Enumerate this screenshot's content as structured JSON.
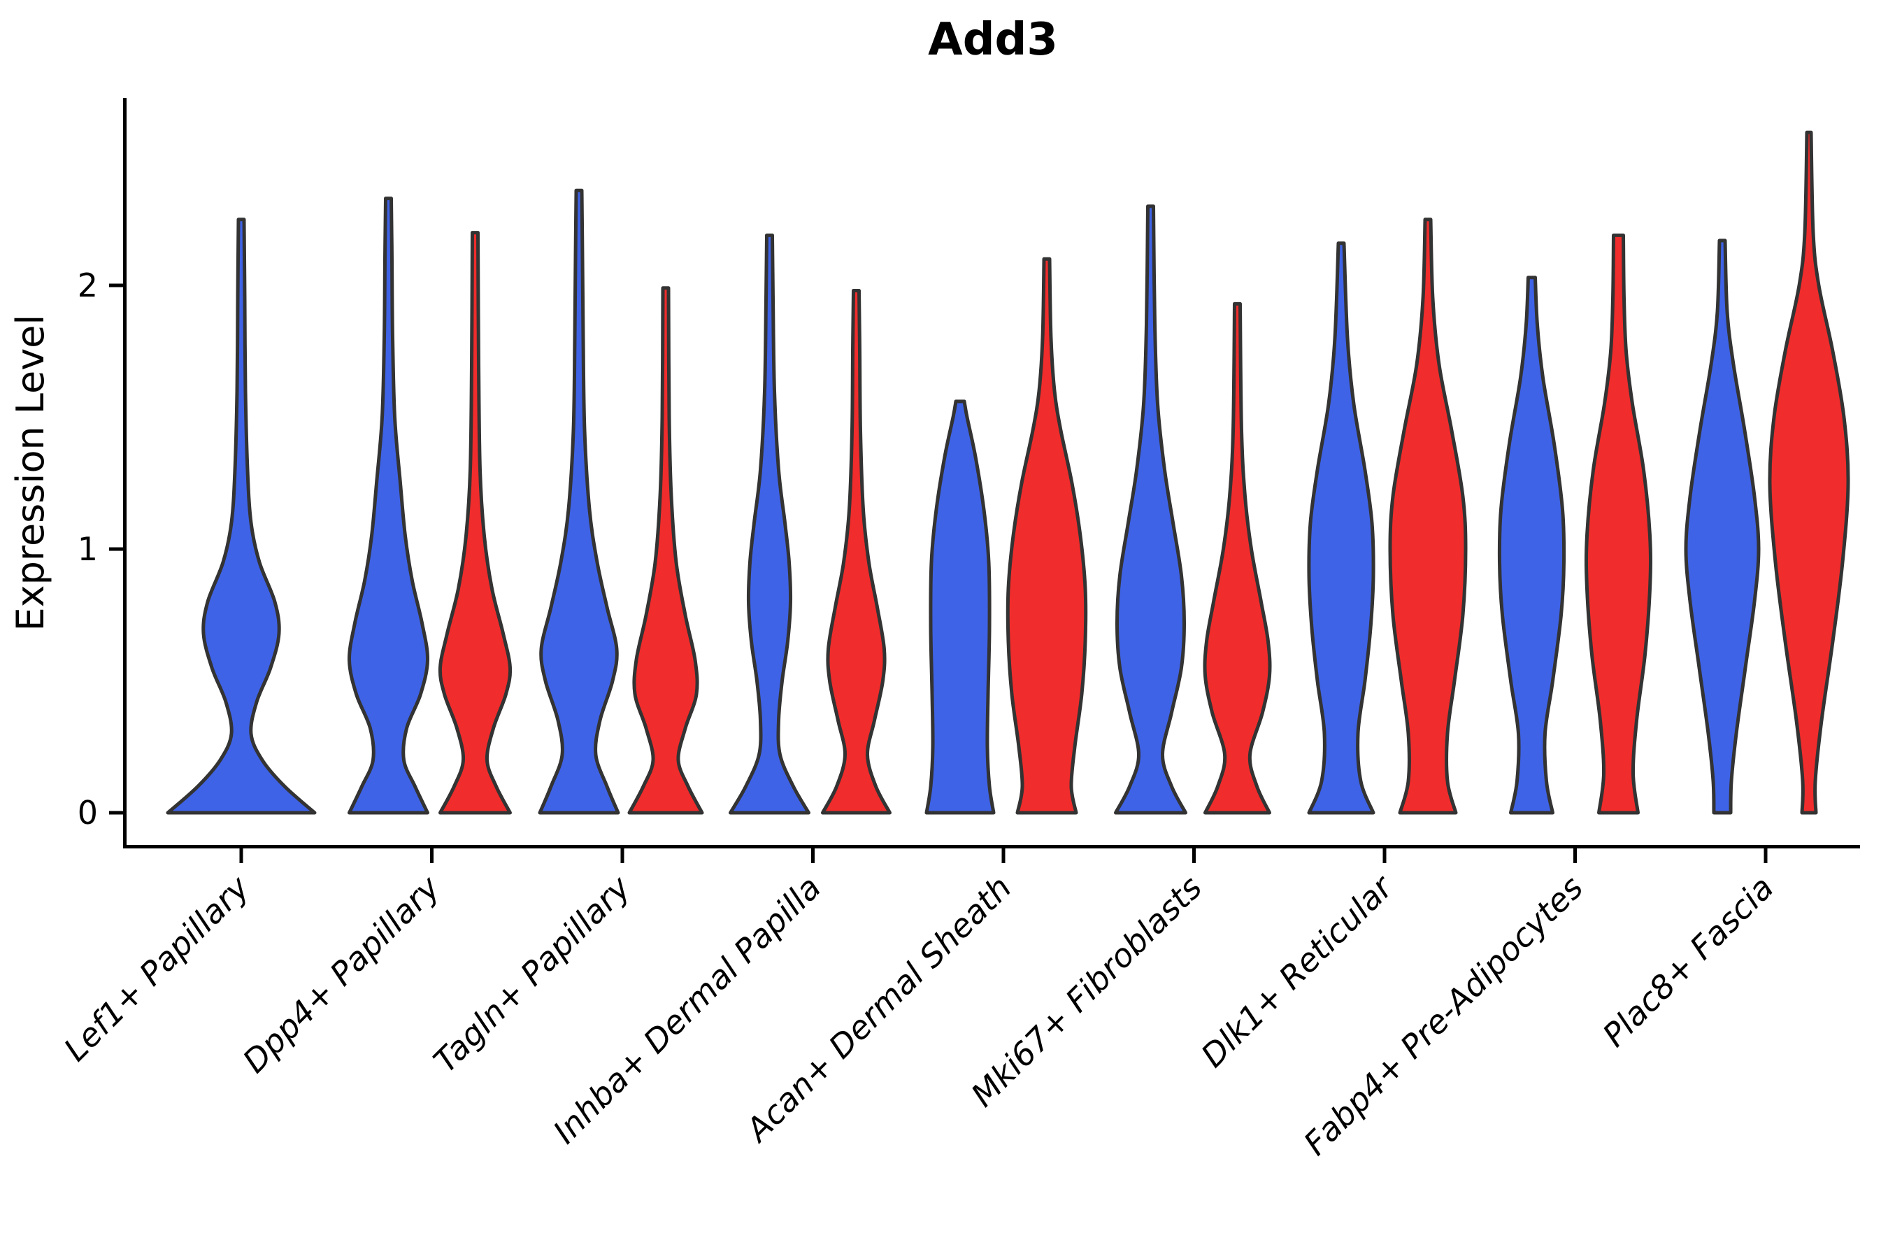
{
  "chart_data": {
    "type": "violin",
    "title": "Add3",
    "ylabel": "Expression Level",
    "yticks": [
      0,
      1,
      2
    ],
    "ylim": [
      0,
      2.7
    ],
    "grid": false,
    "legend": "none",
    "categories": [
      "Lef1+ Papillary",
      "Dpp4+ Papillary",
      "Tagln+ Papillary",
      "Inhba+ Dermal Papilla",
      "Acan+ Dermal Sheath",
      "Mki67+ Fibroblasts",
      "Dlk1+ Reticular",
      "Fabp4+ Pre-Adipocytes",
      "Plac8+ Fascia"
    ],
    "split_colors": {
      "blue": "#3F63E6",
      "red": "#F02C2C"
    },
    "outline_color": "#333333",
    "violins": [
      {
        "category_index": 0,
        "split": "blue",
        "max_expression": 2.25,
        "max_halfwidth": 105,
        "profile": [
          [
            0,
            105
          ],
          [
            0.1,
            62
          ],
          [
            0.2,
            30
          ],
          [
            0.3,
            14
          ],
          [
            0.42,
            22
          ],
          [
            0.55,
            42
          ],
          [
            0.68,
            54
          ],
          [
            0.8,
            48
          ],
          [
            0.95,
            26
          ],
          [
            1.1,
            14
          ],
          [
            1.3,
            9
          ],
          [
            1.6,
            6
          ],
          [
            1.95,
            5
          ],
          [
            2.25,
            4
          ]
        ]
      },
      {
        "category_index": 1,
        "split": "blue",
        "max_expression": 2.33,
        "max_halfwidth": 56,
        "profile": [
          [
            0,
            56
          ],
          [
            0.1,
            38
          ],
          [
            0.2,
            22
          ],
          [
            0.32,
            26
          ],
          [
            0.45,
            46
          ],
          [
            0.58,
            56
          ],
          [
            0.72,
            48
          ],
          [
            0.88,
            34
          ],
          [
            1.05,
            24
          ],
          [
            1.25,
            17
          ],
          [
            1.5,
            9
          ],
          [
            1.8,
            6
          ],
          [
            2.1,
            5
          ],
          [
            2.33,
            4
          ]
        ]
      },
      {
        "category_index": 1,
        "split": "red",
        "max_expression": 2.2,
        "max_halfwidth": 50,
        "profile": [
          [
            0,
            50
          ],
          [
            0.1,
            30
          ],
          [
            0.2,
            17
          ],
          [
            0.32,
            26
          ],
          [
            0.45,
            44
          ],
          [
            0.55,
            50
          ],
          [
            0.68,
            40
          ],
          [
            0.85,
            24
          ],
          [
            1.05,
            13
          ],
          [
            1.3,
            7
          ],
          [
            1.7,
            5
          ],
          [
            2.2,
            4
          ]
        ]
      },
      {
        "category_index": 2,
        "split": "blue",
        "max_expression": 2.36,
        "max_halfwidth": 56,
        "profile": [
          [
            0,
            56
          ],
          [
            0.1,
            40
          ],
          [
            0.22,
            24
          ],
          [
            0.35,
            30
          ],
          [
            0.5,
            48
          ],
          [
            0.62,
            54
          ],
          [
            0.78,
            40
          ],
          [
            0.95,
            26
          ],
          [
            1.15,
            15
          ],
          [
            1.45,
            8
          ],
          [
            1.8,
            6
          ],
          [
            2.1,
            5
          ],
          [
            2.36,
            4
          ]
        ]
      },
      {
        "category_index": 2,
        "split": "red",
        "max_expression": 1.99,
        "max_halfwidth": 52,
        "profile": [
          [
            0,
            52
          ],
          [
            0.1,
            32
          ],
          [
            0.2,
            18
          ],
          [
            0.32,
            28
          ],
          [
            0.45,
            44
          ],
          [
            0.58,
            42
          ],
          [
            0.75,
            28
          ],
          [
            0.95,
            15
          ],
          [
            1.2,
            8
          ],
          [
            1.5,
            5
          ],
          [
            1.99,
            4
          ]
        ]
      },
      {
        "category_index": 3,
        "split": "blue",
        "max_expression": 2.19,
        "max_halfwidth": 56,
        "profile": [
          [
            0,
            56
          ],
          [
            0.1,
            34
          ],
          [
            0.22,
            15
          ],
          [
            0.35,
            13
          ],
          [
            0.5,
            18
          ],
          [
            0.65,
            26
          ],
          [
            0.8,
            30
          ],
          [
            0.95,
            28
          ],
          [
            1.1,
            22
          ],
          [
            1.3,
            13
          ],
          [
            1.6,
            7
          ],
          [
            1.95,
            5
          ],
          [
            2.19,
            4
          ]
        ]
      },
      {
        "category_index": 3,
        "split": "red",
        "max_expression": 1.98,
        "max_halfwidth": 48,
        "profile": [
          [
            0,
            48
          ],
          [
            0.1,
            28
          ],
          [
            0.22,
            16
          ],
          [
            0.35,
            26
          ],
          [
            0.5,
            38
          ],
          [
            0.62,
            40
          ],
          [
            0.78,
            30
          ],
          [
            0.95,
            18
          ],
          [
            1.15,
            10
          ],
          [
            1.45,
            6
          ],
          [
            1.75,
            5
          ],
          [
            1.98,
            4
          ]
        ]
      },
      {
        "category_index": 4,
        "split": "blue",
        "max_expression": 1.56,
        "max_halfwidth": 48,
        "profile": [
          [
            0,
            48
          ],
          [
            0.1,
            42
          ],
          [
            0.25,
            39
          ],
          [
            0.45,
            40
          ],
          [
            0.7,
            42
          ],
          [
            0.95,
            41
          ],
          [
            1.15,
            34
          ],
          [
            1.35,
            22
          ],
          [
            1.5,
            10
          ],
          [
            1.56,
            6
          ]
        ]
      },
      {
        "category_index": 4,
        "split": "red",
        "max_expression": 2.1,
        "max_halfwidth": 55,
        "profile": [
          [
            0,
            42
          ],
          [
            0.1,
            35
          ],
          [
            0.25,
            40
          ],
          [
            0.45,
            50
          ],
          [
            0.65,
            55
          ],
          [
            0.85,
            55
          ],
          [
            1.05,
            48
          ],
          [
            1.25,
            36
          ],
          [
            1.45,
            20
          ],
          [
            1.6,
            11
          ],
          [
            1.8,
            6
          ],
          [
            2.1,
            4
          ]
        ]
      },
      {
        "category_index": 5,
        "split": "blue",
        "max_expression": 2.3,
        "max_halfwidth": 50,
        "profile": [
          [
            0,
            50
          ],
          [
            0.1,
            30
          ],
          [
            0.22,
            17
          ],
          [
            0.38,
            30
          ],
          [
            0.55,
            44
          ],
          [
            0.72,
            48
          ],
          [
            0.9,
            44
          ],
          [
            1.1,
            32
          ],
          [
            1.3,
            20
          ],
          [
            1.55,
            10
          ],
          [
            1.85,
            6
          ],
          [
            2.3,
            4
          ]
        ]
      },
      {
        "category_index": 5,
        "split": "red",
        "max_expression": 1.93,
        "max_halfwidth": 46,
        "profile": [
          [
            0,
            46
          ],
          [
            0.1,
            28
          ],
          [
            0.22,
            18
          ],
          [
            0.38,
            36
          ],
          [
            0.52,
            46
          ],
          [
            0.65,
            44
          ],
          [
            0.8,
            34
          ],
          [
            1.0,
            20
          ],
          [
            1.2,
            11
          ],
          [
            1.45,
            6
          ],
          [
            1.93,
            4
          ]
        ]
      },
      {
        "category_index": 6,
        "split": "blue",
        "max_expression": 2.16,
        "max_halfwidth": 46,
        "profile": [
          [
            0,
            46
          ],
          [
            0.12,
            28
          ],
          [
            0.3,
            24
          ],
          [
            0.5,
            34
          ],
          [
            0.7,
            42
          ],
          [
            0.9,
            46
          ],
          [
            1.1,
            44
          ],
          [
            1.3,
            34
          ],
          [
            1.55,
            18
          ],
          [
            1.8,
            9
          ],
          [
            2.16,
            4
          ]
        ]
      },
      {
        "category_index": 6,
        "split": "red",
        "max_expression": 2.25,
        "max_halfwidth": 54,
        "profile": [
          [
            0,
            40
          ],
          [
            0.12,
            28
          ],
          [
            0.3,
            28
          ],
          [
            0.5,
            38
          ],
          [
            0.75,
            50
          ],
          [
            1.0,
            54
          ],
          [
            1.2,
            50
          ],
          [
            1.45,
            34
          ],
          [
            1.7,
            16
          ],
          [
            1.95,
            7
          ],
          [
            2.25,
            4
          ]
        ]
      },
      {
        "category_index": 7,
        "split": "blue",
        "max_expression": 2.03,
        "max_halfwidth": 46,
        "profile": [
          [
            0,
            30
          ],
          [
            0.12,
            21
          ],
          [
            0.3,
            19
          ],
          [
            0.5,
            30
          ],
          [
            0.75,
            42
          ],
          [
            0.95,
            46
          ],
          [
            1.15,
            44
          ],
          [
            1.4,
            32
          ],
          [
            1.65,
            16
          ],
          [
            1.85,
            8
          ],
          [
            2.03,
            5
          ]
        ]
      },
      {
        "category_index": 7,
        "split": "red",
        "max_expression": 2.19,
        "max_halfwidth": 45,
        "profile": [
          [
            0,
            28
          ],
          [
            0.15,
            21
          ],
          [
            0.35,
            26
          ],
          [
            0.6,
            38
          ],
          [
            0.85,
            45
          ],
          [
            1.05,
            45
          ],
          [
            1.3,
            36
          ],
          [
            1.55,
            20
          ],
          [
            1.75,
            11
          ],
          [
            1.95,
            8
          ],
          [
            2.19,
            7
          ]
        ]
      },
      {
        "category_index": 8,
        "split": "blue",
        "max_expression": 2.17,
        "max_halfwidth": 52,
        "profile": [
          [
            0,
            12
          ],
          [
            0.12,
            13
          ],
          [
            0.3,
            20
          ],
          [
            0.55,
            33
          ],
          [
            0.8,
            46
          ],
          [
            1.0,
            52
          ],
          [
            1.2,
            46
          ],
          [
            1.45,
            32
          ],
          [
            1.7,
            16
          ],
          [
            1.9,
            7
          ],
          [
            2.17,
            4
          ]
        ]
      },
      {
        "category_index": 8,
        "split": "red",
        "max_expression": 2.58,
        "max_halfwidth": 56,
        "profile": [
          [
            0,
            10
          ],
          [
            0.12,
            9
          ],
          [
            0.35,
            18
          ],
          [
            0.65,
            34
          ],
          [
            0.95,
            48
          ],
          [
            1.25,
            56
          ],
          [
            1.5,
            50
          ],
          [
            1.75,
            34
          ],
          [
            2.0,
            14
          ],
          [
            2.2,
            6
          ],
          [
            2.58,
            3
          ]
        ]
      }
    ]
  }
}
